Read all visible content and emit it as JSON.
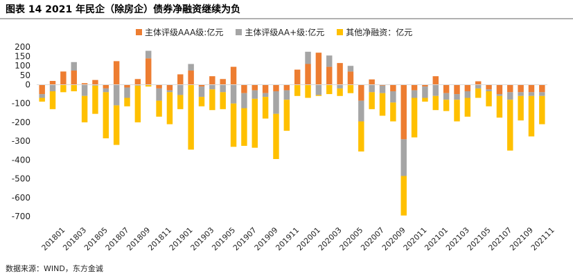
{
  "figure": {
    "title": "图表 14   2021 年民企（除房企）债券净融资继续为负",
    "source": "数据来源：WIND，东方金诚"
  },
  "colors": {
    "aaa": "#ED7D31",
    "aa_plus": "#A5A5A5",
    "other": "#FFC000",
    "axis": "#d9d9d9",
    "text": "#222222"
  },
  "chart_data": {
    "type": "bar",
    "stacked": true,
    "title": "",
    "xlabel": "",
    "ylabel": "",
    "ylim": [
      -700,
      200
    ],
    "yticks": [
      200,
      150,
      100,
      50,
      0,
      -100,
      -200,
      -300,
      -400,
      -500,
      -600,
      -700
    ],
    "grid": false,
    "legend_position": "top",
    "x_tick_labels": [
      "201801",
      "201803",
      "201805",
      "201807",
      "201809",
      "201811",
      "201901",
      "201903",
      "201905",
      "201907",
      "201909",
      "201911",
      "202001",
      "202003",
      "202005",
      "202007",
      "202009",
      "202011",
      "202101",
      "202103",
      "202105",
      "202107",
      "202109",
      "202111"
    ],
    "categories": [
      "201801",
      "201802",
      "201803",
      "201804",
      "201805",
      "201806",
      "201807",
      "201808",
      "201809",
      "201810",
      "201811",
      "201812",
      "201901",
      "201902",
      "201903",
      "201904",
      "201905",
      "201906",
      "201907",
      "201908",
      "201909",
      "201910",
      "201911",
      "201912",
      "202001",
      "202002",
      "202003",
      "202004",
      "202005",
      "202006",
      "202007",
      "202008",
      "202009",
      "202010",
      "202011",
      "202012",
      "202101",
      "202102",
      "202103",
      "202104",
      "202105",
      "202106",
      "202107",
      "202108",
      "202109",
      "202110",
      "202111",
      "202112"
    ],
    "series": [
      {
        "name": "主体评级AAA级:亿元",
        "color_key": "aaa",
        "values": [
          -50,
          20,
          70,
          75,
          8,
          25,
          -20,
          125,
          -15,
          30,
          140,
          -20,
          -30,
          55,
          75,
          -10,
          45,
          30,
          95,
          -45,
          -30,
          -45,
          -35,
          -30,
          80,
          110,
          170,
          95,
          115,
          70,
          -85,
          28,
          -5,
          -35,
          -290,
          -30,
          -10,
          45,
          -45,
          -50,
          -35,
          18,
          -25,
          -50,
          -40,
          -40,
          -40,
          -40
        ]
      },
      {
        "name": "主体评级AA+级:亿元",
        "color_key": "aa_plus",
        "values": [
          -20,
          -35,
          0,
          45,
          -60,
          -5,
          -20,
          -110,
          -55,
          -5,
          40,
          -65,
          -10,
          -55,
          35,
          -55,
          -25,
          -40,
          -100,
          -80,
          -45,
          -20,
          -120,
          -50,
          0,
          65,
          -55,
          60,
          -20,
          30,
          -110,
          -40,
          -40,
          -60,
          -195,
          -40,
          -60,
          -60,
          -35,
          -30,
          -35,
          -20,
          -10,
          -10,
          -40,
          -20,
          -20,
          -20
        ]
      },
      {
        "name": "其他净融资：亿元",
        "color_key": "other",
        "values": [
          -20,
          -95,
          -40,
          -35,
          -140,
          -150,
          -245,
          -210,
          -45,
          -195,
          -10,
          -85,
          -170,
          -75,
          -345,
          -50,
          -110,
          -90,
          -230,
          -200,
          -260,
          -115,
          -240,
          -165,
          -60,
          -70,
          -5,
          -50,
          -40,
          -45,
          -160,
          -90,
          -120,
          -100,
          -210,
          -210,
          -20,
          -75,
          -60,
          -115,
          -100,
          -50,
          -80,
          -115,
          -270,
          -130,
          -215,
          -150
        ]
      }
    ]
  }
}
